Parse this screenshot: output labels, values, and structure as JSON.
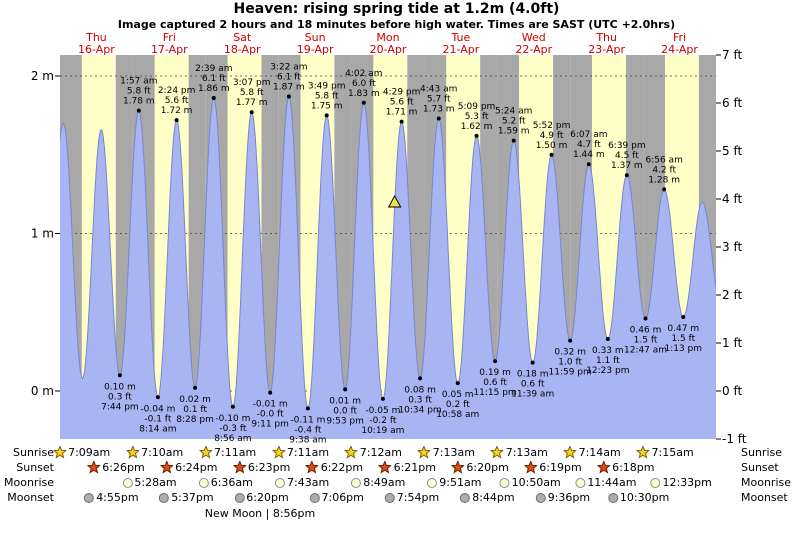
{
  "title": "Heaven: rising  spring tide at 1.2m (4.0ft)",
  "subtitle": "Image captured 2 hours and 18 minutes before high water. Times are SAST (UTC +2.0hrs)",
  "colors": {
    "day_band": "#ffffc8",
    "night_band": "#a8a8a8",
    "tide_fill": "#a9b5f2",
    "tide_stroke": "#7787cc",
    "day_label": "#cc0000",
    "grid_line": "#444444",
    "marker_dot": "#000000",
    "current_marker_fill": "#e8e44a",
    "sunrise_star_fill": "#f5d327",
    "sunrise_star_stroke": "#7a6000",
    "sunset_star_fill": "#e04a15",
    "sunset_star_stroke": "#6b2000",
    "moonrise_fill": "#ffffd0",
    "moonrise_border": "#8a8a8a",
    "moonset_fill": "#adadad",
    "moonset_border": "#6a6a6a"
  },
  "chart_data": {
    "type": "area",
    "title": "Heaven: rising  spring tide at 1.2m (4.0ft)",
    "x_range_days": 9,
    "ylim_m": [
      -0.305,
      2.134
    ],
    "grid": "dashed horizontal at 0m, 1m, 2m",
    "days": [
      {
        "label": "Thu",
        "date": "16-Apr"
      },
      {
        "label": "Fri",
        "date": "17-Apr"
      },
      {
        "label": "Sat",
        "date": "18-Apr"
      },
      {
        "label": "Sun",
        "date": "19-Apr"
      },
      {
        "label": "Mon",
        "date": "20-Apr"
      },
      {
        "label": "Tue",
        "date": "21-Apr"
      },
      {
        "label": "Wed",
        "date": "22-Apr"
      },
      {
        "label": "Thu",
        "date": "23-Apr"
      },
      {
        "label": "Fri",
        "date": "24-Apr"
      }
    ],
    "y_axis_left": [
      {
        "label": "2 m",
        "m": 2
      },
      {
        "label": "1 m",
        "m": 1
      },
      {
        "label": "0 m",
        "m": 0
      }
    ],
    "y_axis_right": [
      {
        "label": "7 ft",
        "ft": 7
      },
      {
        "label": "6 ft",
        "ft": 6
      },
      {
        "label": "5 ft",
        "ft": 5
      },
      {
        "label": "4 ft",
        "ft": 4
      },
      {
        "label": "3 ft",
        "ft": 3
      },
      {
        "label": "2 ft",
        "ft": 2
      },
      {
        "label": "1 ft",
        "ft": 1
      },
      {
        "label": "0 ft",
        "ft": 0
      },
      {
        "label": "-1 ft",
        "ft": -1
      }
    ],
    "daylight": {
      "sunrise_hour": 7.2,
      "sunset_hour": 18.35
    },
    "current_marker": {
      "t": 4.591,
      "m": 1.2
    },
    "tide_events": [
      {
        "type": "low",
        "t": -0.235,
        "m": 0.12,
        "estimated": true
      },
      {
        "type": "high",
        "t": 0.046,
        "m": 1.7,
        "estimated": true
      },
      {
        "type": "low",
        "t": 0.308,
        "m": 0.08,
        "estimated": true
      },
      {
        "type": "high",
        "t": 0.565,
        "m": 1.66,
        "estimated": true
      },
      {
        "type": "low",
        "t": 0.822,
        "m": 0.1,
        "time": "7:44 pm",
        "ft_label": "0.3 ft",
        "m_label": "0.10 m"
      },
      {
        "type": "high",
        "t": 1.081,
        "m": 1.78,
        "time": "1:57 am",
        "ft_label": "5.8 ft",
        "m_label": "1.78 m"
      },
      {
        "type": "low",
        "t": 1.343,
        "m": -0.04,
        "time": "8:14 am",
        "ft_label": "-0.1 ft",
        "m_label": "-0.04 m"
      },
      {
        "type": "high",
        "t": 1.6,
        "m": 1.72,
        "time": "2:24 pm",
        "ft_label": "5.6 ft",
        "m_label": "1.72 m"
      },
      {
        "type": "low",
        "t": 1.853,
        "m": 0.02,
        "time": "8:28 pm",
        "ft_label": "0.1 ft",
        "m_label": "0.02 m"
      },
      {
        "type": "high",
        "t": 2.11,
        "m": 1.86,
        "time": "2:39 am",
        "ft_label": "6.1 ft",
        "m_label": "1.86 m"
      },
      {
        "type": "low",
        "t": 2.372,
        "m": -0.1,
        "time": "8:56 am",
        "ft_label": "-0.3 ft",
        "m_label": "-0.10 m"
      },
      {
        "type": "high",
        "t": 2.63,
        "m": 1.77,
        "time": "3:07 pm",
        "ft_label": "5.8 ft",
        "m_label": "1.77 m"
      },
      {
        "type": "low",
        "t": 2.883,
        "m": -0.01,
        "time": "9:11 pm",
        "ft_label": "-0.0 ft",
        "m_label": "-0.01 m"
      },
      {
        "type": "high",
        "t": 3.14,
        "m": 1.87,
        "time": "3:22 am",
        "ft_label": "6.1 ft",
        "m_label": "1.87 m"
      },
      {
        "type": "low",
        "t": 3.401,
        "m": -0.11,
        "time": "9:38 am",
        "ft_label": "-0.4 ft",
        "m_label": "-0.11 m"
      },
      {
        "type": "high",
        "t": 3.659,
        "m": 1.75,
        "time": "3:49 pm",
        "ft_label": "5.8 ft",
        "m_label": "1.75 m"
      },
      {
        "type": "low",
        "t": 3.912,
        "m": 0.01,
        "time": "9:53 pm",
        "ft_label": "0.0 ft",
        "m_label": "0.01 m"
      },
      {
        "type": "high",
        "t": 4.168,
        "m": 1.83,
        "time": "4:02 am",
        "ft_label": "6.0 ft",
        "m_label": "1.83 m"
      },
      {
        "type": "low",
        "t": 4.43,
        "m": -0.05,
        "time": "10:19 am",
        "ft_label": "-0.2 ft",
        "m_label": "-0.05 m"
      },
      {
        "type": "high",
        "t": 4.687,
        "m": 1.71,
        "time": "4:29 pm",
        "ft_label": "5.6 ft",
        "m_label": "1.71 m"
      },
      {
        "type": "low",
        "t": 4.94,
        "m": 0.08,
        "time": "10:34 pm",
        "ft_label": "0.3 ft",
        "m_label": "0.08 m"
      },
      {
        "type": "high",
        "t": 5.196,
        "m": 1.73,
        "time": "4:43 am",
        "ft_label": "5.7 ft",
        "m_label": "1.73 m"
      },
      {
        "type": "low",
        "t": 5.457,
        "m": 0.05,
        "time": "10:58 am",
        "ft_label": "0.2 ft",
        "m_label": "0.05 m"
      },
      {
        "type": "high",
        "t": 5.715,
        "m": 1.62,
        "time": "5:09 pm",
        "ft_label": "5.3 ft",
        "m_label": "1.62 m"
      },
      {
        "type": "low",
        "t": 5.969,
        "m": 0.19,
        "time": "11:15 pm",
        "ft_label": "0.6 ft",
        "m_label": "0.19 m"
      },
      {
        "type": "high",
        "t": 6.225,
        "m": 1.59,
        "time": "5:24 am",
        "ft_label": "5.2 ft",
        "m_label": "1.59 m"
      },
      {
        "type": "low",
        "t": 6.485,
        "m": 0.18,
        "time": "11:39 am",
        "ft_label": "0.6 ft",
        "m_label": "0.18 m"
      },
      {
        "type": "high",
        "t": 6.744,
        "m": 1.5,
        "time": "5:52 pm",
        "ft_label": "4.9 ft",
        "m_label": "1.50 m"
      },
      {
        "type": "low",
        "t": 6.999,
        "m": 0.32,
        "time": "11:59 pm",
        "ft_label": "1.0 ft",
        "m_label": "0.32 m"
      },
      {
        "type": "high",
        "t": 7.255,
        "m": 1.44,
        "time": "6:07 am",
        "ft_label": "4.7 ft",
        "m_label": "1.44 m"
      },
      {
        "type": "low",
        "t": 7.516,
        "m": 0.33,
        "time": "12:23 pm",
        "ft_label": "1.1 ft",
        "m_label": "0.33 m"
      },
      {
        "type": "high",
        "t": 7.777,
        "m": 1.37,
        "time": "6:39 pm",
        "ft_label": "4.5 ft",
        "m_label": "1.37 m"
      },
      {
        "type": "low",
        "t": 8.033,
        "m": 0.46,
        "time": "12:47 am",
        "ft_label": "1.5 ft",
        "m_label": "0.46 m"
      },
      {
        "type": "high",
        "t": 8.289,
        "m": 1.28,
        "time": "6:56 am",
        "ft_label": "4.2 ft",
        "m_label": "1.28 m"
      },
      {
        "type": "low",
        "t": 8.551,
        "m": 0.47,
        "time": "1:13 pm",
        "ft_label": "1.5 ft",
        "m_label": "0.47 m"
      },
      {
        "type": "high",
        "t": 8.812,
        "m": 1.2,
        "estimated": true
      },
      {
        "type": "low",
        "t": 9.07,
        "m": 0.55,
        "estimated": true
      }
    ]
  },
  "astro": {
    "rows": [
      {
        "name": "sunrise",
        "label": "Sunrise",
        "icon": "sunrise-icon",
        "entries": [
          {
            "time": "7:09am",
            "day": 0
          },
          {
            "time": "7:10am",
            "day": 1
          },
          {
            "time": "7:11am",
            "day": 2
          },
          {
            "time": "7:11am",
            "day": 3
          },
          {
            "time": "7:12am",
            "day": 4
          },
          {
            "time": "7:13am",
            "day": 5
          },
          {
            "time": "7:13am",
            "day": 6
          },
          {
            "time": "7:14am",
            "day": 7
          },
          {
            "time": "7:15am",
            "day": 8
          }
        ]
      },
      {
        "name": "sunset",
        "label": "Sunset",
        "icon": "sunset-icon",
        "entries": [
          {
            "time": "6:26pm",
            "day": 0
          },
          {
            "time": "6:24pm",
            "day": 1
          },
          {
            "time": "6:23pm",
            "day": 2
          },
          {
            "time": "6:22pm",
            "day": 3
          },
          {
            "time": "6:21pm",
            "day": 4
          },
          {
            "time": "6:20pm",
            "day": 5
          },
          {
            "time": "6:19pm",
            "day": 6
          },
          {
            "time": "6:18pm",
            "day": 7
          }
        ]
      },
      {
        "name": "moonrise",
        "label": "Moonrise",
        "icon": "moonrise-icon",
        "entries": [
          {
            "time": "5:28am",
            "day": 1
          },
          {
            "time": "6:36am",
            "day": 2
          },
          {
            "time": "7:43am",
            "day": 3
          },
          {
            "time": "8:49am",
            "day": 4
          },
          {
            "time": "9:51am",
            "day": 5
          },
          {
            "time": "10:50am",
            "day": 6
          },
          {
            "time": "11:44am",
            "day": 7
          },
          {
            "time": "12:33pm",
            "day": 8
          }
        ]
      },
      {
        "name": "moonset",
        "label": "Moonset",
        "icon": "moonset-icon",
        "entries": [
          {
            "time": "4:55pm",
            "day": 0
          },
          {
            "time": "5:37pm",
            "day": 1
          },
          {
            "time": "6:20pm",
            "day": 2
          },
          {
            "time": "7:06pm",
            "day": 3
          },
          {
            "time": "7:54pm",
            "day": 4
          },
          {
            "time": "8:44pm",
            "day": 5
          },
          {
            "time": "9:36pm",
            "day": 6
          },
          {
            "time": "10:30pm",
            "day": 7
          }
        ]
      }
    ],
    "moon_phase": "New Moon | 8:56pm"
  }
}
